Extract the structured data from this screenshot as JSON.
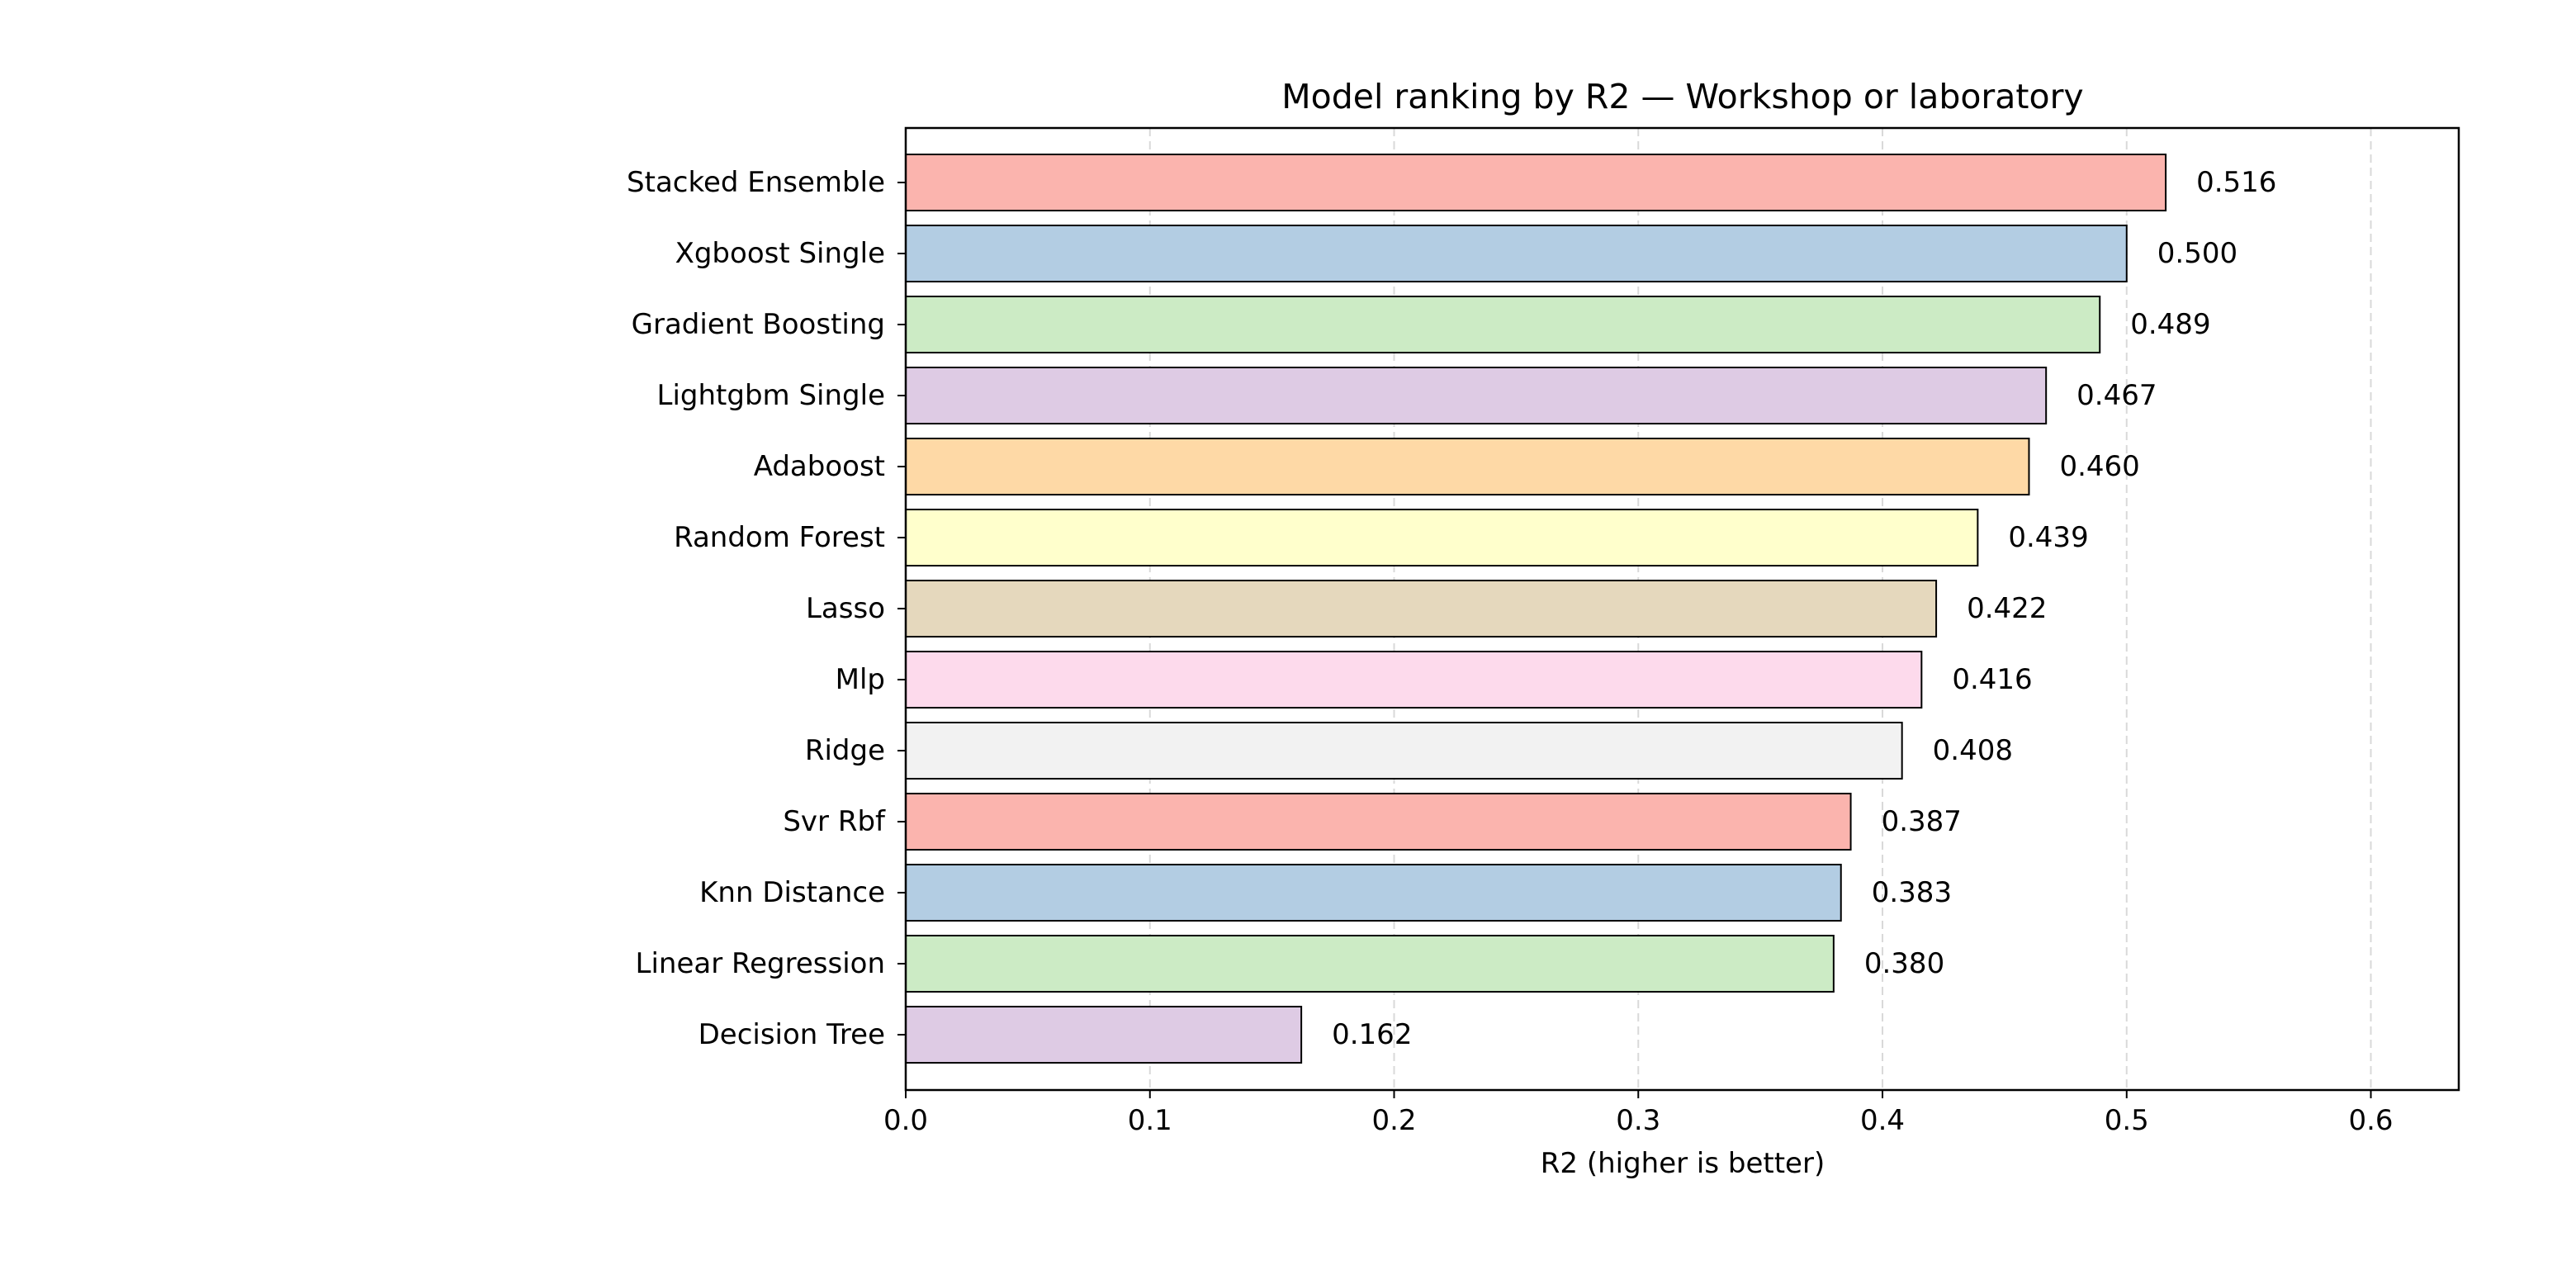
{
  "chart_data": {
    "type": "bar",
    "orientation": "horizontal",
    "title": "Model ranking by R2 — Workshop or laboratory",
    "xlabel": "R2 (higher is better)",
    "ylabel": "",
    "xlim": [
      0,
      0.636
    ],
    "xticks": [
      0.0,
      0.1,
      0.2,
      0.3,
      0.4,
      0.5,
      0.6
    ],
    "xtick_labels": [
      "0.0",
      "0.1",
      "0.2",
      "0.3",
      "0.4",
      "0.5",
      "0.6"
    ],
    "grid": "vertical dashed",
    "categories": [
      "Stacked Ensemble",
      "Xgboost Single",
      "Gradient Boosting",
      "Lightgbm Single",
      "Adaboost",
      "Random Forest",
      "Lasso",
      "Mlp",
      "Ridge",
      "Svr Rbf",
      "Knn Distance",
      "Linear Regression",
      "Decision Tree"
    ],
    "values": [
      0.516,
      0.5,
      0.489,
      0.467,
      0.46,
      0.439,
      0.422,
      0.416,
      0.408,
      0.387,
      0.383,
      0.38,
      0.162
    ],
    "value_labels": [
      "0.516",
      "0.500",
      "0.489",
      "0.467",
      "0.460",
      "0.439",
      "0.422",
      "0.416",
      "0.408",
      "0.387",
      "0.383",
      "0.380",
      "0.162"
    ],
    "colors": [
      "#fbb4ae",
      "#b3cde3",
      "#ccebc5",
      "#decbe4",
      "#fed9a6",
      "#ffffcc",
      "#e5d8bd",
      "#fddaec",
      "#f2f2f2",
      "#fbb4ae",
      "#b3cde3",
      "#ccebc5",
      "#decbe4"
    ]
  }
}
